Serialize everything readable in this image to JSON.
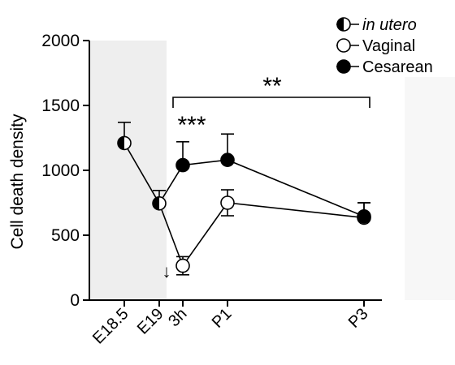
{
  "chart_data": {
    "type": "line",
    "ylabel": "Cell death density",
    "xlabel": "",
    "ylim": [
      0,
      2000
    ],
    "yticks": [
      "0",
      "500",
      "1000",
      "1500",
      "2000"
    ],
    "categories": [
      "E18.5",
      "E19",
      "3h",
      "P1",
      "P3"
    ],
    "shaded_region": {
      "from": "E18.5",
      "to": "E19"
    },
    "series": [
      {
        "name": "in utero",
        "marker": "half-filled",
        "x": [
          "E18.5",
          "E19"
        ],
        "values": [
          1210,
          745
        ],
        "error": [
          160,
          100
        ]
      },
      {
        "name": "Vaginal",
        "marker": "open",
        "x": [
          "E19",
          "3h",
          "P1",
          "P3"
        ],
        "values": [
          745,
          265,
          750,
          635
        ],
        "error": [
          100,
          70,
          100,
          115
        ]
      },
      {
        "name": "Cesarean",
        "marker": "filled",
        "x": [
          "E19",
          "3h",
          "P1",
          "P3"
        ],
        "values": [
          745,
          1040,
          1080,
          645
        ],
        "error": [
          100,
          180,
          200,
          105
        ]
      }
    ],
    "annotations": {
      "sig_3h": "***",
      "sig_bracket": "**",
      "arrow": "↓"
    },
    "legend_position": "top-right"
  }
}
